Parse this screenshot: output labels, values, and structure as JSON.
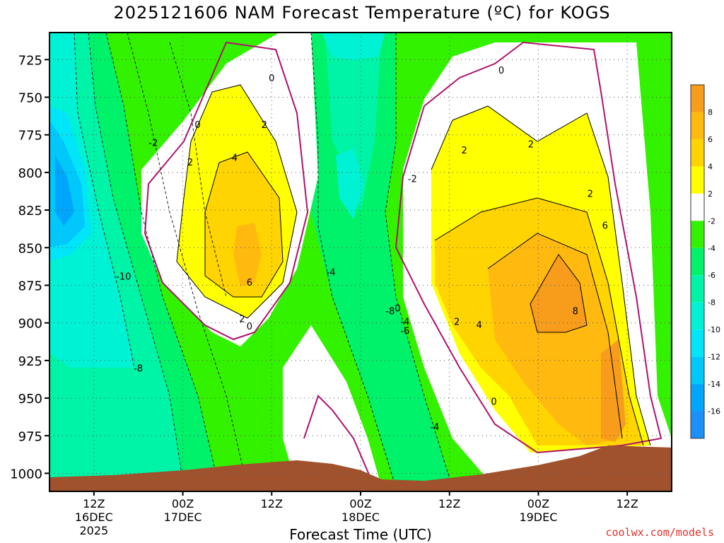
{
  "title": "2025121606 NAM Forecast Temperature (ºC) for KOGS",
  "credit": "coolwx.com/models",
  "chart_data": {
    "type": "heatmap",
    "title": "2025121606 NAM Forecast Temperature (ºC) for KOGS",
    "xlabel": "Forecast Time (UTC)",
    "ylabel": "",
    "x_ticks": [
      {
        "label": "12Z",
        "sub": "16DEC",
        "sub2": "2025",
        "hour": 6
      },
      {
        "label": "00Z",
        "sub": "17DEC",
        "sub2": "",
        "hour": 18
      },
      {
        "label": "12Z",
        "sub": "",
        "sub2": "",
        "hour": 30
      },
      {
        "label": "00Z",
        "sub": "18DEC",
        "sub2": "",
        "hour": 42
      },
      {
        "label": "12Z",
        "sub": "",
        "sub2": "",
        "hour": 54
      },
      {
        "label": "00Z",
        "sub": "19DEC",
        "sub2": "",
        "hour": 66
      },
      {
        "label": "12Z",
        "sub": "",
        "sub2": "",
        "hour": 78
      }
    ],
    "xlim_hours": [
      0,
      84
    ],
    "y_ticks": [
      725,
      750,
      775,
      800,
      825,
      850,
      875,
      900,
      925,
      950,
      975,
      1000
    ],
    "ylim_mb": [
      707,
      1012
    ],
    "y_scale": "pressure (inverted)",
    "colorbar": {
      "labels": [
        "8",
        "6",
        "4",
        "2",
        "-2",
        "-4",
        "-6",
        "-8",
        "-10",
        "-12",
        "-14",
        "-16"
      ],
      "colors": [
        "#f79d1b",
        "#ffb90f",
        "#ffd400",
        "#ffff00",
        "#ffffff",
        "#33f200",
        "#00f26a",
        "#00f4a7",
        "#00f2d4",
        "#00e5f7",
        "#00c8fb",
        "#00a6fb",
        "#1b90f9"
      ]
    },
    "contour_labels": [
      {
        "text": "0",
        "hour": 30,
        "mb": 737
      },
      {
        "text": "2",
        "hour": 29,
        "mb": 768
      },
      {
        "text": "0",
        "hour": 20,
        "mb": 768
      },
      {
        "text": "-2",
        "hour": 14,
        "mb": 780
      },
      {
        "text": "4",
        "hour": 25,
        "mb": 790
      },
      {
        "text": "2",
        "hour": 19,
        "mb": 793
      },
      {
        "text": "6",
        "hour": 27,
        "mb": 873
      },
      {
        "text": "2",
        "hour": 26,
        "mb": 897
      },
      {
        "text": "0",
        "hour": 27,
        "mb": 902
      },
      {
        "text": "-10",
        "hour": 10,
        "mb": 869
      },
      {
        "text": "-8",
        "hour": 12,
        "mb": 930
      },
      {
        "text": "-4",
        "hour": 38,
        "mb": 866
      },
      {
        "text": "-2",
        "hour": 49,
        "mb": 804
      },
      {
        "text": "-8",
        "hour": 46,
        "mb": 892
      },
      {
        "text": "0",
        "hour": 47,
        "mb": 890
      },
      {
        "text": "-4",
        "hour": 48,
        "mb": 899
      },
      {
        "text": "-6",
        "hour": 48,
        "mb": 905
      },
      {
        "text": "2",
        "hour": 55,
        "mb": 899
      },
      {
        "text": "4",
        "hour": 58,
        "mb": 901
      },
      {
        "text": "2",
        "hour": 56,
        "mb": 785
      },
      {
        "text": "2",
        "hour": 65,
        "mb": 781
      },
      {
        "text": "0",
        "hour": 61,
        "mb": 732
      },
      {
        "text": "2",
        "hour": 73,
        "mb": 814
      },
      {
        "text": "6",
        "hour": 75,
        "mb": 835
      },
      {
        "text": "8",
        "hour": 71,
        "mb": 892
      },
      {
        "text": "0",
        "hour": 60,
        "mb": 952
      },
      {
        "text": "-4",
        "hour": 52,
        "mb": 969
      }
    ],
    "grid": true
  }
}
